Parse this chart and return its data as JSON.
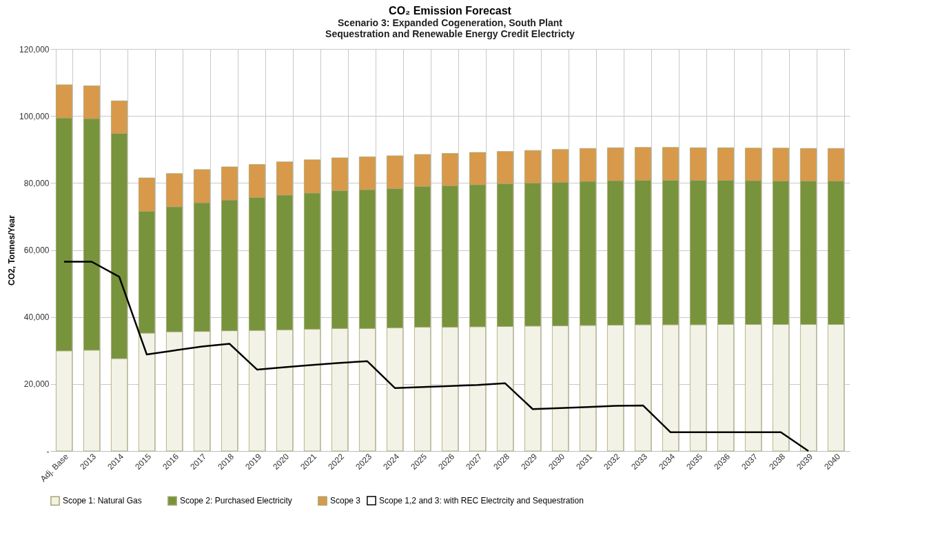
{
  "chart_data": {
    "type": "bar",
    "stacked": true,
    "title": "CO₂ Emission Forecast",
    "subtitle": "Scenario 3:  Expanded Cogeneration, South Plant\nSequestration and Renewable Energy Credit Electricty",
    "ylabel": "CO2, Tonnes/Year",
    "categories": [
      "Adj. Base",
      "2013",
      "2014",
      "2015",
      "2016",
      "2017",
      "2018",
      "2019",
      "2020",
      "2021",
      "2022",
      "2023",
      "2024",
      "2025",
      "2026",
      "2027",
      "2028",
      "2029",
      "2030",
      "2031",
      "2032",
      "2033",
      "2034",
      "2035",
      "2036",
      "2037",
      "2038",
      "2039",
      "2040"
    ],
    "series": [
      {
        "name": "Scope 1:  Natural Gas",
        "color": "#f2f2e6",
        "values": [
          29900,
          30100,
          27600,
          35200,
          35600,
          35700,
          35900,
          36000,
          36200,
          36400,
          36600,
          36600,
          36800,
          37000,
          37000,
          37100,
          37200,
          37300,
          37400,
          37500,
          37600,
          37700,
          37700,
          37700,
          37800,
          37800,
          37800,
          37800,
          37800
        ]
      },
      {
        "name": "Scope 2:  Purchased Electricity",
        "color": "#77933c",
        "values": [
          69500,
          69100,
          67200,
          36400,
          37300,
          38400,
          39000,
          39700,
          40200,
          40600,
          41100,
          41400,
          41500,
          42000,
          42200,
          42400,
          42600,
          42700,
          42800,
          43000,
          43100,
          43100,
          43100,
          43100,
          43000,
          42900,
          42800,
          42800,
          42800
        ]
      },
      {
        "name": "Scope 3",
        "color": "#d9994a",
        "values": [
          9900,
          9800,
          9700,
          9900,
          9900,
          9900,
          9900,
          9800,
          9900,
          9900,
          9800,
          9800,
          9800,
          9500,
          9600,
          9600,
          9600,
          9700,
          9800,
          9800,
          9800,
          9800,
          9800,
          9700,
          9700,
          9700,
          9800,
          9700,
          9700
        ]
      },
      {
        "name": "Scope 1,2 and 3: with REC Electrcity and Sequestration",
        "type": "line",
        "color": "#000000",
        "values": [
          56500,
          56500,
          52000,
          28800,
          30000,
          31200,
          32000,
          24300,
          25000,
          25700,
          26300,
          26800,
          18800,
          19100,
          19400,
          19700,
          20200,
          12500,
          12800,
          13100,
          13500,
          13600,
          5600,
          5600,
          5600,
          5600,
          5600,
          0,
          null
        ]
      }
    ],
    "ylim": [
      0,
      120000
    ],
    "yticks": [
      {
        "value": 0,
        "label": "-"
      },
      {
        "value": 20000,
        "label": "20,000"
      },
      {
        "value": 40000,
        "label": "40,000"
      },
      {
        "value": 60000,
        "label": "60,000"
      },
      {
        "value": 80000,
        "label": "80,000"
      },
      {
        "value": 100000,
        "label": "100,000"
      },
      {
        "value": 120000,
        "label": "120,000"
      }
    ],
    "grid": true,
    "legend": "bottom"
  }
}
